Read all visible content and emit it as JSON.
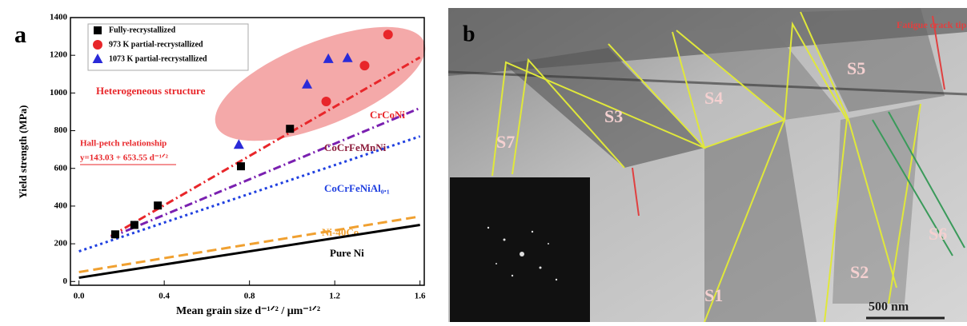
{
  "chart_data": {
    "type": "scatter",
    "panel_label": "a",
    "x_label": "Mean grain size d⁻¹ᐟ² / μm⁻¹ᐟ²",
    "y_label": "Yield strength (MPa)",
    "xlim": [
      -0.04,
      1.62
    ],
    "ylim": [
      -20,
      1400
    ],
    "xticks": [
      {
        "value": 0,
        "label": "0.0"
      },
      0.4,
      0.8,
      1.2,
      1.6
    ],
    "yticks": [
      0,
      200,
      400,
      600,
      800,
      1000,
      1200,
      1400
    ],
    "series": [
      {
        "name": "Fully-recrystallized",
        "color": "#000000",
        "marker": "square",
        "x": [
          0.17,
          0.26,
          0.37,
          0.76,
          0.99
        ],
        "values": [
          250,
          300,
          403,
          611,
          810
        ]
      },
      {
        "name": "973 K partial-recrystallized",
        "color": "#e8262a",
        "marker": "circle",
        "x": [
          1.16,
          1.34,
          1.45
        ],
        "values": [
          955,
          1145,
          1310
        ]
      },
      {
        "name": "1073 K partial-recrystallized",
        "color": "#2a2ad8",
        "marker": "triangle",
        "x": [
          0.75,
          1.07,
          1.17,
          1.26
        ],
        "values": [
          725,
          1045,
          1180,
          1185
        ]
      },
      {
        "name": "CrCoNi",
        "color": "#e8262a",
        "style": "dash-dot",
        "x": [
          0.15,
          1.6
        ],
        "values": [
          241,
          1189
        ]
      },
      {
        "name": "CoCrFeMnNi",
        "color": "#7a20b0",
        "style": "dash-dot",
        "x": [
          0.15,
          1.6
        ],
        "values": [
          235,
          920
        ]
      },
      {
        "name": "CoCrFeNiAl₀.₁",
        "color": "#2040e0",
        "style": "dot",
        "x": [
          0,
          1.6
        ],
        "values": [
          160,
          770
        ]
      },
      {
        "name": "Ni-40Co",
        "color": "#f0a030",
        "style": "dash",
        "x": [
          0,
          1.6
        ],
        "values": [
          50,
          345
        ]
      },
      {
        "name": "Pure Ni",
        "color": "#000000",
        "style": "solid",
        "x": [
          0,
          1.6
        ],
        "values": [
          20,
          300
        ]
      }
    ],
    "annotations": [
      "Heterogeneous structure",
      "Hall-petch relationship",
      "y=143.03 + 653.55 d⁻¹ᐟ²"
    ]
  },
  "micrograph": {
    "panel_label": "b",
    "labels": [
      "S7",
      "S3",
      "S4",
      "S5",
      "S6",
      "S2",
      "S1"
    ],
    "crack_label": "Fatigue crack tip",
    "scale_bar": "500 nm"
  }
}
